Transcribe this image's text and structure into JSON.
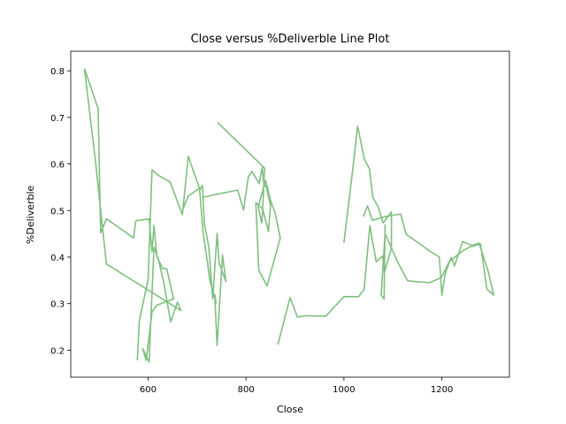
{
  "chart_data": {
    "type": "line",
    "title": "Close versus %Deliverble Line Plot",
    "xlabel": "Close",
    "ylabel": "%Deliverble",
    "xlim": [
      442,
      1338
    ],
    "ylim": [
      0.142,
      0.842
    ],
    "xticks": [
      600,
      800,
      1000,
      1200
    ],
    "yticks": [
      0.2,
      0.3,
      0.4,
      0.5,
      0.6,
      0.7,
      0.8
    ],
    "xtick_labels": [
      "600",
      "800",
      "1000",
      "1200"
    ],
    "ytick_labels": [
      "0.2",
      "0.3",
      "0.4",
      "0.5",
      "0.6",
      "0.7",
      "0.8"
    ],
    "grid": false,
    "legend": "none",
    "color": "#7fbf7f",
    "series": [
      {
        "x": [
          470,
          498,
          503,
          515,
          557,
          570,
          575,
          602,
          608,
          612,
          618,
          630,
          638,
          652,
          617,
          608,
          596,
          589,
          602,
          612,
          621,
          632,
          646,
          660,
          667,
          515,
          506,
          493,
          470
        ],
        "y": [
          0.805,
          0.718,
          0.452,
          0.482,
          0.451,
          0.441,
          0.478,
          0.482,
          0.411,
          0.468,
          0.401,
          0.375,
          0.375,
          0.31,
          0.296,
          0.282,
          0.178,
          0.203,
          0.175,
          0.421,
          0.395,
          0.345,
          0.261,
          0.303,
          0.285,
          0.385,
          0.472,
          0.602,
          0.805
        ]
      },
      {
        "x": [
          578,
          582,
          600,
          608,
          620,
          645,
          670,
          682,
          706,
          711,
          715,
          724,
          732,
          741,
          745,
          759,
          752,
          741,
          736,
          739,
          726,
          722,
          712,
          705,
          682,
          672
        ],
        "y": [
          0.178,
          0.263,
          0.352,
          0.587,
          0.576,
          0.561,
          0.491,
          0.616,
          0.545,
          0.554,
          0.471,
          0.422,
          0.31,
          0.451,
          0.387,
          0.347,
          0.404,
          0.21,
          0.319,
          0.302,
          0.351,
          0.383,
          0.455,
          0.548,
          0.531,
          0.505
        ]
      },
      {
        "x": [
          710,
          783,
          795,
          805,
          812,
          827,
          833,
          836,
          842,
          847,
          850,
          846,
          834,
          820,
          826,
          843,
          870,
          859,
          850,
          840,
          825,
          832,
          834,
          838,
          742
        ],
        "y": [
          0.528,
          0.544,
          0.501,
          0.573,
          0.584,
          0.558,
          0.592,
          0.561,
          0.548,
          0.524,
          0.511,
          0.455,
          0.503,
          0.517,
          0.372,
          0.338,
          0.441,
          0.497,
          0.521,
          0.565,
          0.508,
          0.473,
          0.502,
          0.591,
          0.689
        ]
      },
      {
        "x": [
          865,
          890,
          905,
          921,
          963,
          1000,
          1030,
          1041,
          1053,
          1066,
          1079,
          1083,
          1097,
          1097,
          1080,
          1070,
          1059,
          1052,
          1042,
          1028,
          1018,
          1000
        ],
        "y": [
          0.212,
          0.313,
          0.271,
          0.274,
          0.273,
          0.315,
          0.315,
          0.33,
          0.467,
          0.39,
          0.402,
          0.368,
          0.419,
          0.497,
          0.473,
          0.508,
          0.528,
          0.59,
          0.609,
          0.681,
          0.589,
          0.431
        ]
      },
      {
        "x": [
          1040,
          1048,
          1058,
          1081,
          1101,
          1116,
          1127,
          1150,
          1175,
          1195,
          1200,
          1207,
          1219,
          1226,
          1242,
          1262,
          1276,
          1295,
          1306,
          1292,
          1279,
          1256,
          1242,
          1215,
          1199,
          1175,
          1130,
          1110,
          1084,
          1076,
          1082,
          1084
        ],
        "y": [
          0.487,
          0.51,
          0.479,
          0.486,
          0.49,
          0.492,
          0.449,
          0.432,
          0.413,
          0.4,
          0.318,
          0.365,
          0.399,
          0.381,
          0.433,
          0.425,
          0.43,
          0.368,
          0.318,
          0.331,
          0.428,
          0.421,
          0.413,
          0.39,
          0.356,
          0.345,
          0.349,
          0.389,
          0.45,
          0.318,
          0.31,
          0.47
        ]
      }
    ]
  }
}
